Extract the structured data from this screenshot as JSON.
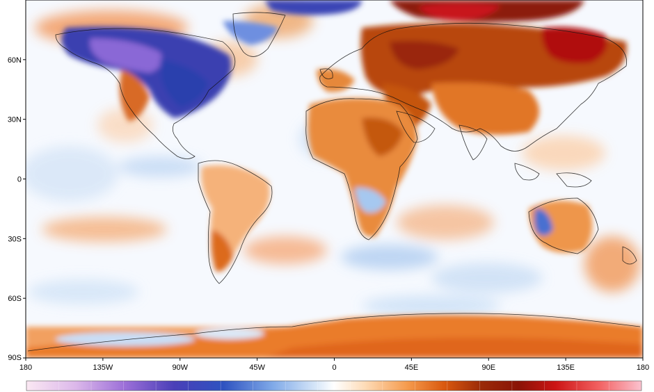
{
  "map": {
    "projection": "equirectangular",
    "extent": {
      "lon": [
        -180,
        180
      ],
      "lat": [
        -90,
        90
      ]
    },
    "lat_ticks": [
      {
        "value": 60,
        "label": "60N"
      },
      {
        "value": 30,
        "label": "30N"
      },
      {
        "value": 0,
        "label": "0"
      },
      {
        "value": -30,
        "label": "30S"
      },
      {
        "value": -60,
        "label": "60S"
      },
      {
        "value": -90,
        "label": "90S"
      }
    ],
    "lon_ticks": [
      {
        "value": -180,
        "label": "180"
      },
      {
        "value": -135,
        "label": "135W"
      },
      {
        "value": -90,
        "label": "90W"
      },
      {
        "value": -45,
        "label": "45W"
      },
      {
        "value": 0,
        "label": "0"
      },
      {
        "value": 45,
        "label": "45E"
      },
      {
        "value": 90,
        "label": "90E"
      },
      {
        "value": 135,
        "label": "135E"
      },
      {
        "value": 180,
        "label": "180"
      }
    ],
    "colorbar": {
      "labels": [],
      "colors": [
        "#fbe8f3",
        "#e4c3ec",
        "#b688e0",
        "#7a55c8",
        "#3f3fb3",
        "#2a48b8",
        "#4f7fd8",
        "#9dc2ef",
        "#dbe9f8",
        "#ffffff",
        "#fde4c8",
        "#f7a45a",
        "#e2650f",
        "#b2400a",
        "#8a1a06",
        "#b20b0b",
        "#df1b1b",
        "#f36a6a",
        "#fbb6c4"
      ]
    }
  }
}
